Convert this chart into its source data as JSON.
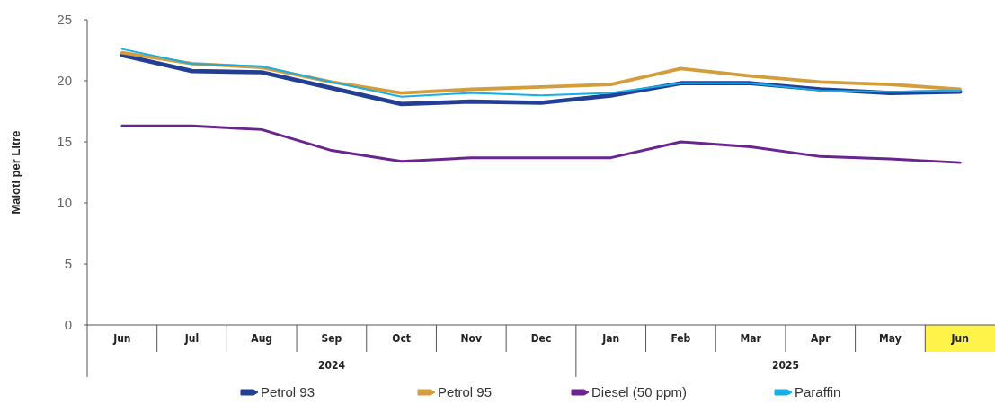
{
  "chart_data": {
    "type": "line",
    "ylabel": "Maloti per Litre",
    "categories": [
      "Jun",
      "Jul",
      "Aug",
      "Sep",
      "Oct",
      "Nov",
      "Dec",
      "Jan",
      "Feb",
      "Mar",
      "Apr",
      "May",
      "Jun"
    ],
    "annotations": [
      "2024",
      "2025"
    ],
    "ylim": [
      0,
      25
    ],
    "yticks": [
      0,
      5,
      10,
      15,
      20,
      25
    ],
    "grid": false,
    "legend": "bottom",
    "marker": "none",
    "line_style": "solid",
    "series": [
      {
        "name": "Petrol 93",
        "color": "#233f94",
        "values": [
          22.1,
          20.8,
          20.7,
          19.4,
          18.1,
          18.3,
          18.2,
          18.8,
          19.8,
          19.8,
          19.3,
          19.0,
          19.1
        ]
      },
      {
        "name": "Petrol 95",
        "color": "#d49d3c",
        "values": [
          22.3,
          21.4,
          21.1,
          19.9,
          19.0,
          19.3,
          19.5,
          19.7,
          21.0,
          20.4,
          19.9,
          19.7,
          19.3
        ]
      },
      {
        "name": "Diesel (50 ppm)",
        "color": "#6a2490",
        "values": [
          16.3,
          16.3,
          16.0,
          14.3,
          13.4,
          13.7,
          13.7,
          13.7,
          15.0,
          14.6,
          13.8,
          13.6,
          13.3
        ]
      },
      {
        "name": "Paraffin",
        "color": "#14aee8",
        "values": [
          22.6,
          21.4,
          21.2,
          19.9,
          18.7,
          19.0,
          18.8,
          19.0,
          19.8,
          19.8,
          19.2,
          19.1,
          19.2
        ]
      }
    ]
  }
}
